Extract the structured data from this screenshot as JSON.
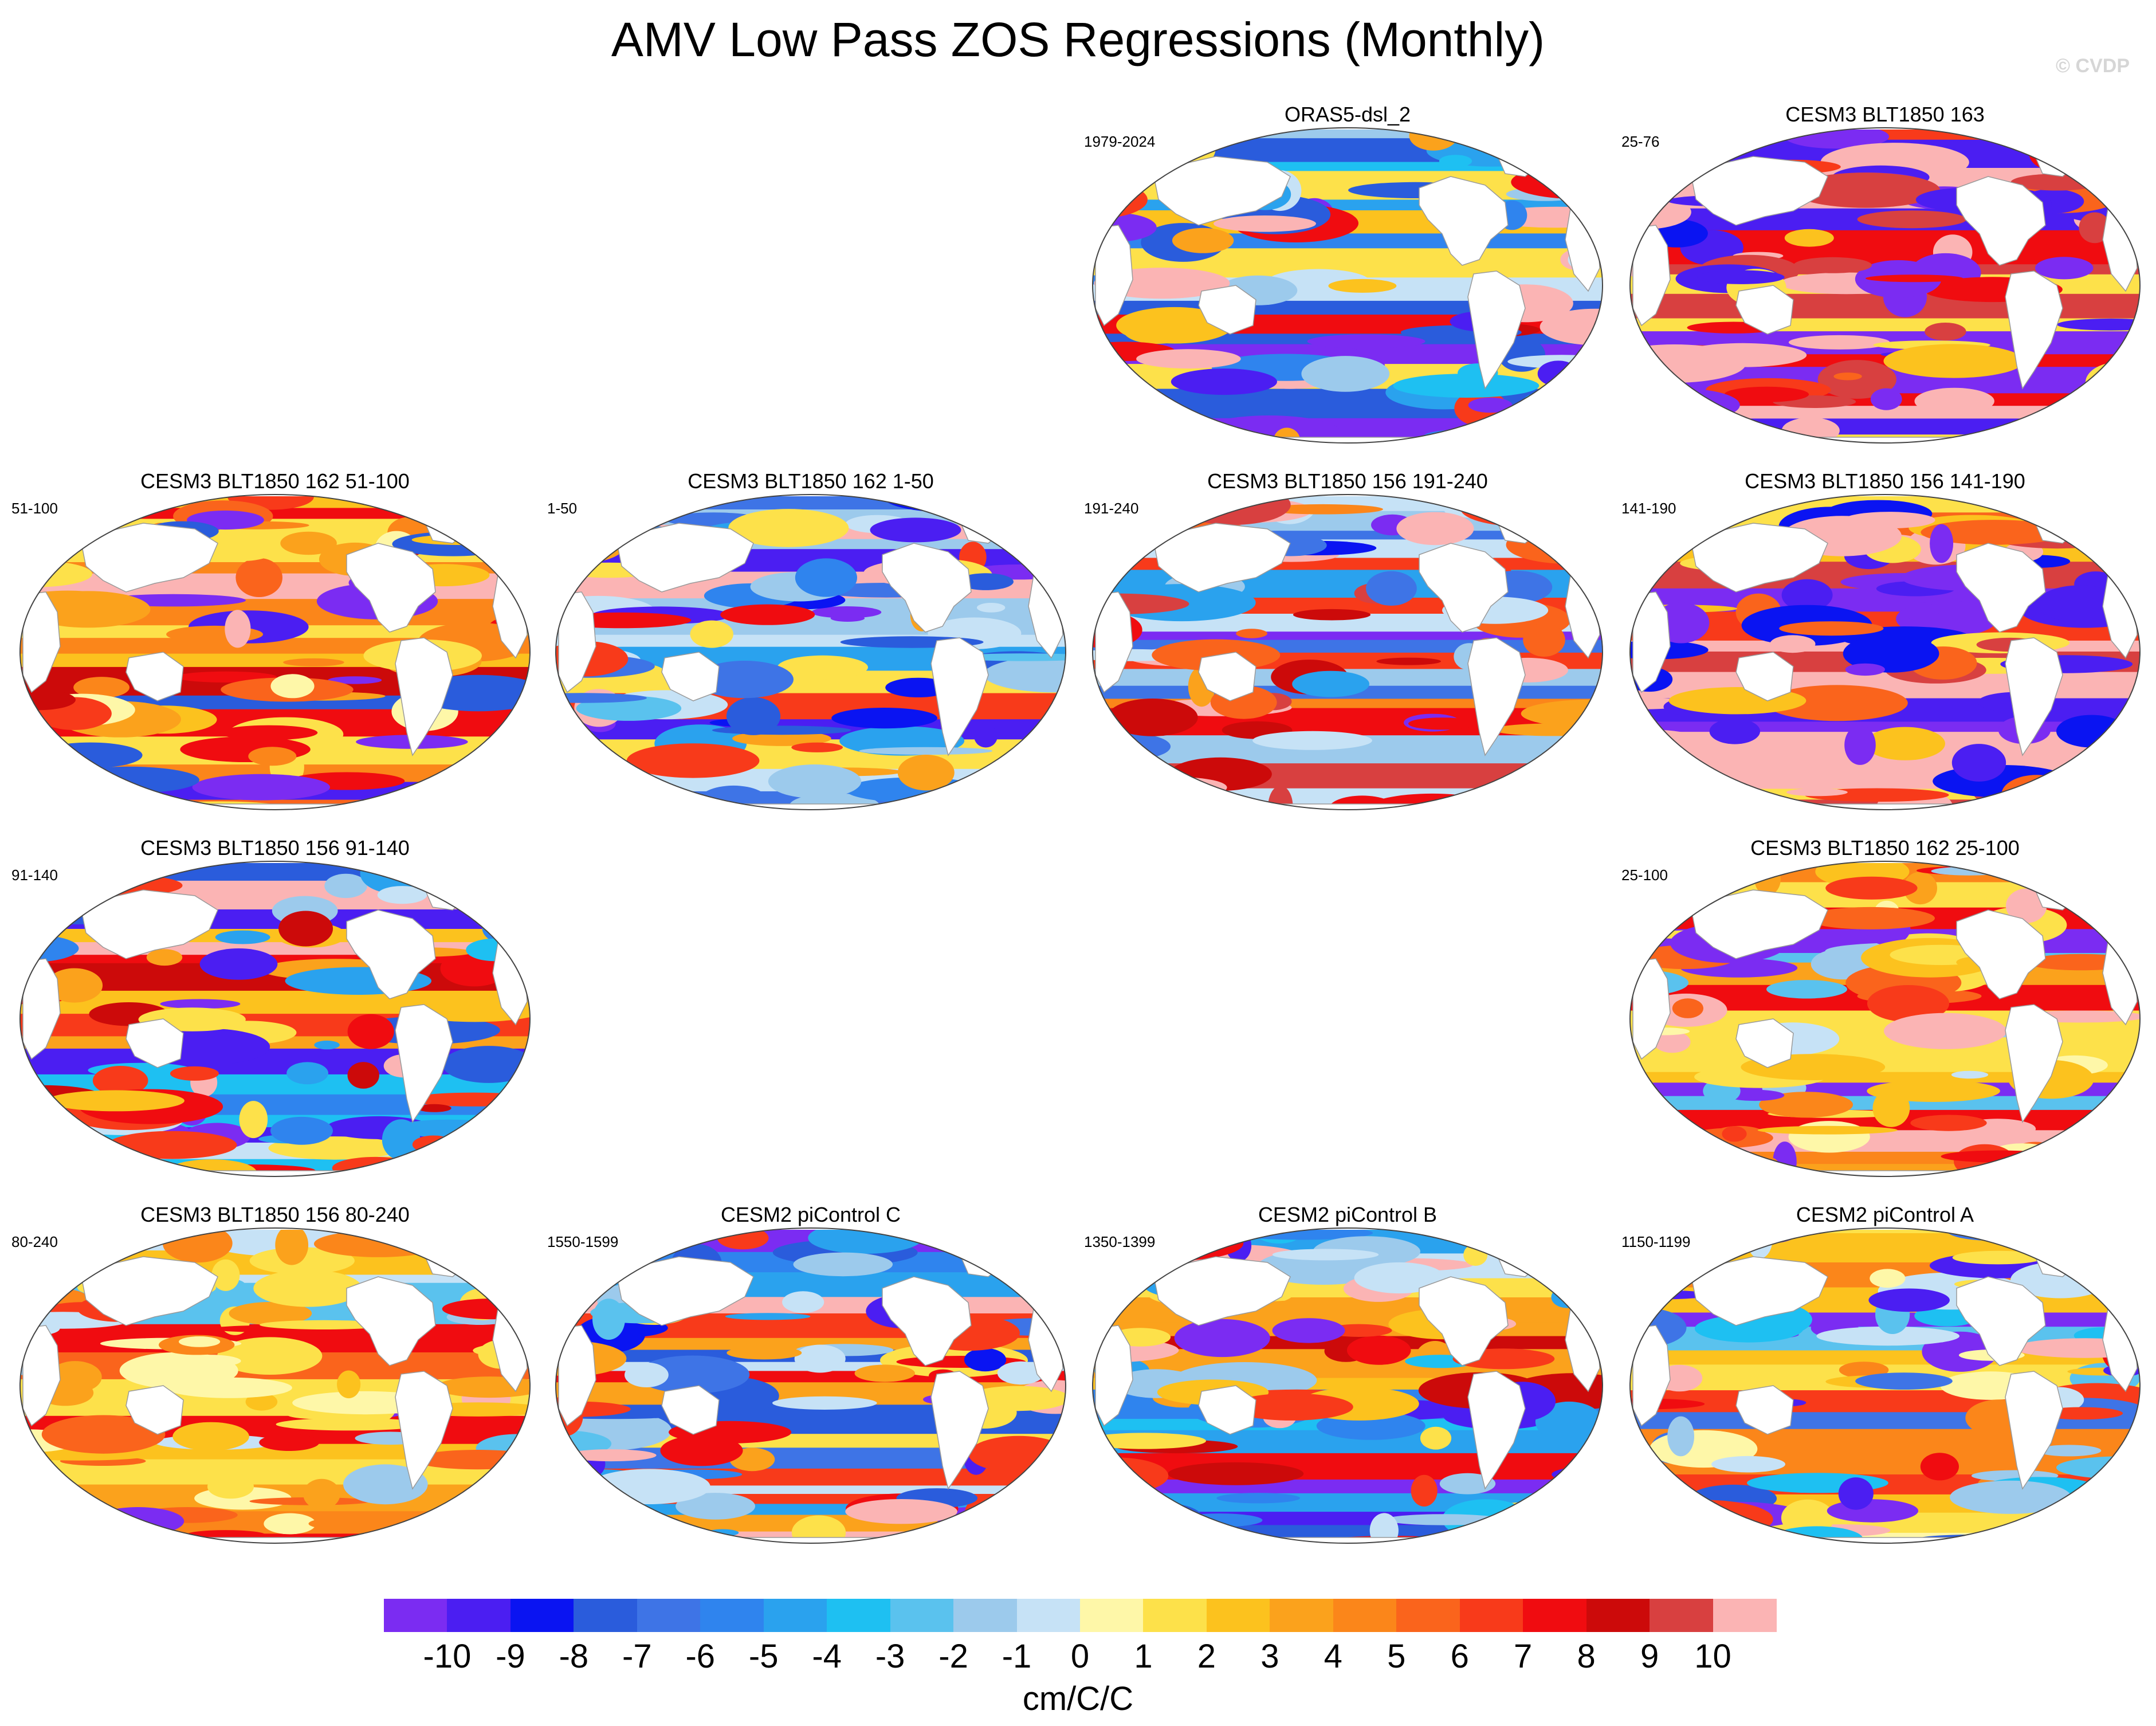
{
  "title": "AMV Low Pass ZOS Regressions (Monthly)",
  "watermark": "© CVDP",
  "units": "cm/C/C",
  "chart_data": {
    "type": "heatmap",
    "title": "AMV Low Pass ZOS Regressions (Monthly)",
    "projection": "Robinson world maps (Pacific centered)",
    "colorbar": {
      "label": "cm/C/C",
      "levels": [
        -10,
        -9,
        -8,
        -7,
        -6,
        -5,
        -4,
        -3,
        -2,
        -1,
        0,
        1,
        2,
        3,
        4,
        5,
        6,
        7,
        8,
        9,
        10
      ],
      "colors": [
        "#7b2cf2",
        "#4b1ef2",
        "#0a14f2",
        "#2a5cdc",
        "#3e74e6",
        "#2f84ee",
        "#2aa2ee",
        "#1ec0f2",
        "#5ac2ee",
        "#9ccaec",
        "#c6e2f6",
        "#fef7a8",
        "#fde14a",
        "#fcc21e",
        "#fba21c",
        "#fb861a",
        "#fa641c",
        "#f83a1a",
        "#f00c10",
        "#cc0a0a",
        "#d84040",
        "#fbb4b4"
      ]
    },
    "panels": [
      {
        "title": "ORAS5-dsl_2",
        "years": "1979-2024",
        "pattern": "mixed",
        "row": 0,
        "col": 2
      },
      {
        "title": "CESM3 BLT1850 163",
        "years": "25-76",
        "pattern": "pink-purple",
        "row": 0,
        "col": 3
      },
      {
        "title": "CESM3 BLT1850 162 51-100",
        "years": "51-100",
        "pattern": "warm",
        "row": 1,
        "col": 0
      },
      {
        "title": "CESM3 BLT1850 162 1-50",
        "years": "1-50",
        "pattern": "cool",
        "row": 1,
        "col": 1
      },
      {
        "title": "CESM3 BLT1850 156 191-240",
        "years": "191-240",
        "pattern": "warm-strong",
        "row": 1,
        "col": 2
      },
      {
        "title": "CESM3 BLT1850 156 141-190",
        "years": "141-190",
        "pattern": "pink-purple",
        "row": 1,
        "col": 3
      },
      {
        "title": "CESM3 BLT1850 156 91-140",
        "years": "91-140",
        "pattern": "mixed",
        "row": 2,
        "col": 0
      },
      {
        "title": "CESM3 BLT1850 162 25-100",
        "years": "25-100",
        "pattern": "warm-light",
        "row": 2,
        "col": 3
      },
      {
        "title": "CESM3 BLT1850 156 80-240",
        "years": "80-240",
        "pattern": "warm-light",
        "row": 3,
        "col": 0
      },
      {
        "title": "CESM2 piControl C",
        "years": "1550-1599",
        "pattern": "cool",
        "row": 3,
        "col": 1
      },
      {
        "title": "CESM2 piControl B",
        "years": "1350-1399",
        "pattern": "mixed",
        "row": 3,
        "col": 2
      },
      {
        "title": "CESM2 piControl A",
        "years": "1150-1199",
        "pattern": "cool-light",
        "row": 3,
        "col": 3
      }
    ]
  }
}
